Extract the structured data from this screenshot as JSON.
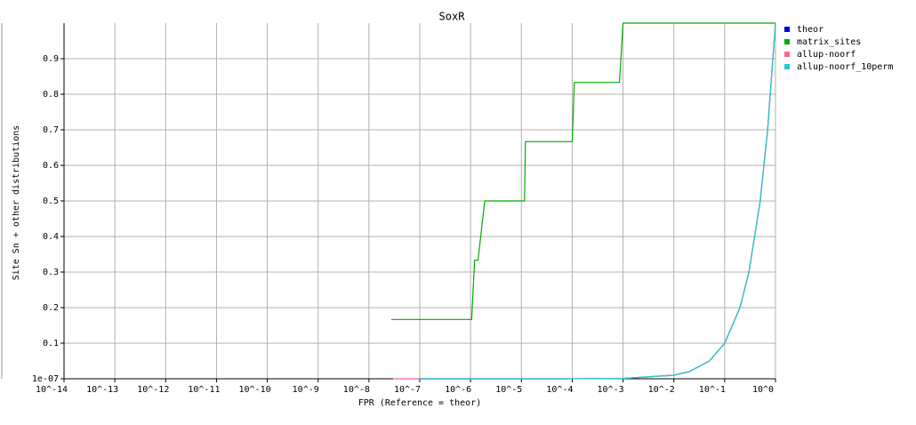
{
  "chart_data": {
    "type": "line",
    "title": "SoxR",
    "xlabel": "FPR (Reference = theor)",
    "ylabel": "Site Sn + other distributions",
    "xscale": "log",
    "grid": true,
    "legend": "right",
    "xlim": [
      1e-14,
      1
    ],
    "ylim": [
      1e-07,
      1
    ],
    "xticks": [
      {
        "value": 1e-14,
        "label": "10^-14"
      },
      {
        "value": 1e-13,
        "label": "10^-13"
      },
      {
        "value": 1e-12,
        "label": "10^-12"
      },
      {
        "value": 1e-11,
        "label": "10^-11"
      },
      {
        "value": 1e-10,
        "label": "10^-10"
      },
      {
        "value": 1e-09,
        "label": "10^-9"
      },
      {
        "value": 1e-08,
        "label": "10^-8"
      },
      {
        "value": 1e-07,
        "label": "10^-7"
      },
      {
        "value": 1e-06,
        "label": "10^-6"
      },
      {
        "value": 1e-05,
        "label": "10^-5"
      },
      {
        "value": 0.0001,
        "label": "10^-4"
      },
      {
        "value": 0.001,
        "label": "10^-3"
      },
      {
        "value": 0.01,
        "label": "10^-2"
      },
      {
        "value": 0.1,
        "label": "10^-1"
      },
      {
        "value": 1,
        "label": "10^0"
      }
    ],
    "yticks": [
      {
        "value": 1e-07,
        "label": "1e-07"
      },
      0.1,
      0.2,
      0.3,
      0.4,
      0.5,
      0.6,
      0.7,
      0.8,
      0.9
    ],
    "series": [
      {
        "name": "theor",
        "color": "#0000cc",
        "x": [
          1e-07,
          1e-06,
          1e-05,
          0.0001,
          0.001,
          0.01,
          0.02,
          0.05,
          0.1,
          0.2,
          0.3,
          0.5,
          0.7,
          1
        ],
        "values": [
          1e-07,
          1e-06,
          1e-05,
          0.0001,
          0.001,
          0.01,
          0.02,
          0.05,
          0.1,
          0.2,
          0.3,
          0.5,
          0.7,
          1
        ]
      },
      {
        "name": "matrix_sites",
        "color": "#00aa00",
        "x": [
          2.75e-08,
          1.05e-06,
          1.2e-06,
          1.4e-06,
          1.9e-06,
          1.15e-05,
          1.2e-05,
          0.0001,
          0.00011,
          0.00085,
          0.001,
          1
        ],
        "values": [
          0.1667,
          0.1667,
          0.3333,
          0.3333,
          0.5,
          0.5,
          0.6667,
          0.6667,
          0.8333,
          0.8333,
          1,
          1
        ]
      },
      {
        "name": "allup-noorf",
        "color": "#ff6688",
        "x": [
          3e-08,
          1e-07,
          1e-06,
          1e-05,
          0.0001,
          0.001,
          0.01,
          0.02,
          0.05,
          0.1,
          0.2,
          0.3,
          0.5,
          0.7,
          1
        ],
        "values": [
          3e-08,
          1e-07,
          1e-06,
          1e-05,
          0.0001,
          0.001,
          0.01,
          0.02,
          0.05,
          0.1,
          0.2,
          0.3,
          0.5,
          0.7,
          1
        ]
      },
      {
        "name": "allup-noorf_10perm",
        "color": "#22cccc",
        "x": [
          1e-07,
          1e-06,
          1e-05,
          0.0001,
          0.001,
          0.01,
          0.02,
          0.05,
          0.1,
          0.2,
          0.3,
          0.5,
          0.7,
          1
        ],
        "values": [
          1e-07,
          1e-06,
          1e-05,
          0.0001,
          0.001,
          0.01,
          0.02,
          0.05,
          0.1,
          0.2,
          0.3,
          0.5,
          0.7,
          1
        ]
      }
    ]
  }
}
